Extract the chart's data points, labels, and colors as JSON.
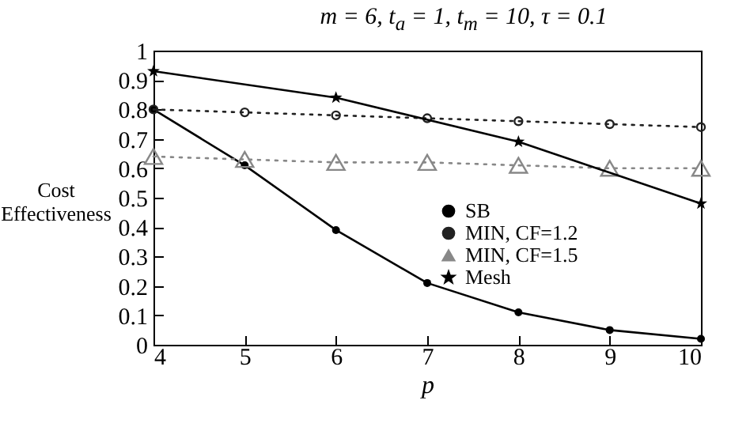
{
  "chart_data": {
    "type": "line",
    "title": "m = 6, t$_{a}$ = 1, t$_{m}$ = 10, τ = 0.1",
    "xlabel": "p",
    "ylabel": "Cost Effectiveness",
    "x": [
      4,
      5,
      6,
      7,
      8,
      9,
      10
    ],
    "series": [
      {
        "name": "SB",
        "color": "#000000",
        "marker": "circle",
        "line_style": "solid",
        "values": [
          0.8,
          0.61,
          0.39,
          0.21,
          0.11,
          0.05,
          0.02
        ]
      },
      {
        "name": "MIN, CF=1.2",
        "color": "#222222",
        "marker": "circle",
        "line_style": "dotted",
        "values": [
          0.8,
          0.79,
          0.78,
          0.77,
          0.76,
          0.75,
          0.74
        ]
      },
      {
        "name": "MIN, CF=1.5",
        "color": "#888888",
        "marker": "triangle",
        "line_style": "dotted",
        "values": [
          0.64,
          0.63,
          0.62,
          0.62,
          0.61,
          0.6,
          0.6
        ]
      },
      {
        "name": "Mesh",
        "color": "#000000",
        "marker": "star",
        "line_style": "solid",
        "x": [
          4,
          6,
          8,
          10
        ],
        "values": [
          0.93,
          0.84,
          0.69,
          0.48
        ]
      }
    ],
    "xlim": [
      4,
      10
    ],
    "xticks": [
      4,
      5,
      6,
      7,
      8,
      9,
      10
    ],
    "ylim": [
      0,
      1
    ],
    "yticks": [
      0,
      0.1,
      0.2,
      0.3,
      0.4,
      0.5,
      0.6,
      0.7,
      0.8,
      0.9,
      1
    ],
    "grid": false,
    "legend": "right"
  }
}
